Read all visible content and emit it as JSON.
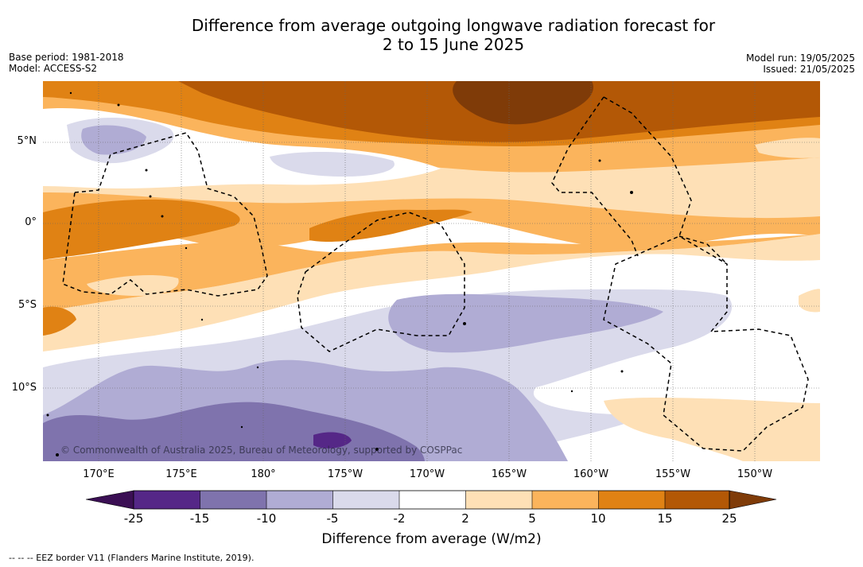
{
  "title_line1": "Difference from average outgoing longwave radiation forecast for",
  "title_line2": "2 to 15 June 2025",
  "meta_left": {
    "base_period": "Base period: 1981-2018",
    "model": "Model: ACCESS-S2"
  },
  "meta_right": {
    "model_run": "Model run: 19/05/2025",
    "issued": "Issued: 21/05/2025"
  },
  "map": {
    "lat_labels": [
      "5°N",
      "0°",
      "5°S",
      "10°S"
    ],
    "lon_labels": [
      "170°E",
      "175°E",
      "180°",
      "175°W",
      "170°W",
      "165°W",
      "160°W",
      "155°W",
      "150°W"
    ],
    "copyright": "© Commonwealth of Australia 2025, Bureau of Meteorology, supported by COSPPac"
  },
  "colorbar": {
    "ticks": [
      "-25",
      "-15",
      "-10",
      "-5",
      "-2",
      "2",
      "5",
      "10",
      "15",
      "25"
    ],
    "colors": {
      "lt_m25": "#3b0f54",
      "m25_m15": "#552787",
      "m15_m10": "#7f73ad",
      "m10_m5": "#b0acd4",
      "m5_m2": "#dadaeb",
      "m2_2": "#ffffff",
      "p2_5": "#fee0b6",
      "p5_10": "#fbb45c",
      "p10_15": "#e08214",
      "p15_25": "#b35806",
      "gt_25": "#7f3b08"
    },
    "label": "Difference from average (W/m2)"
  },
  "eez_legend": "--  --  -- EEZ border V11 (Flanders Marine Institute, 2019)."
}
